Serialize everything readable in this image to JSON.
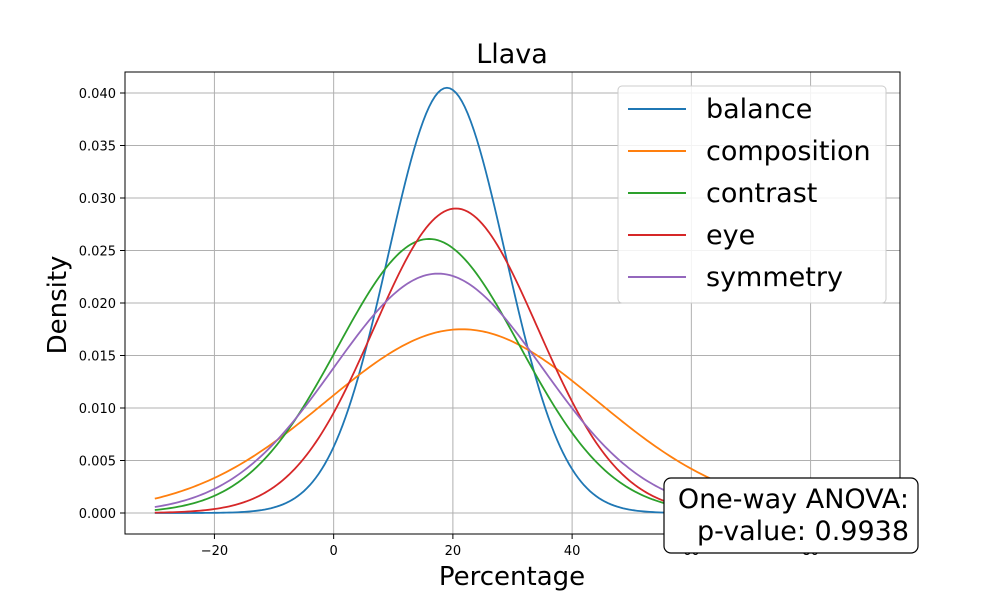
{
  "chart_data": {
    "type": "line",
    "title": "Llava",
    "xlabel": "Percentage",
    "ylabel": "Density",
    "xlim": [
      -35,
      95
    ],
    "ylim": [
      -0.002,
      0.042
    ],
    "xticks": [
      -20,
      0,
      20,
      40,
      60,
      80
    ],
    "xtick_labels": [
      "−20",
      "0",
      "20",
      "40",
      "60",
      "80"
    ],
    "yticks": [
      0.0,
      0.005,
      0.01,
      0.015,
      0.02,
      0.025,
      0.03,
      0.035,
      0.04
    ],
    "ytick_labels": [
      "0.000",
      "0.005",
      "0.010",
      "0.015",
      "0.020",
      "0.025",
      "0.030",
      "0.035",
      "0.040"
    ],
    "grid": true,
    "legend_position": "top-right",
    "x_range": [
      -30,
      90
    ],
    "series": [
      {
        "name": "balance",
        "color": "#1f77b4",
        "distribution": "normal",
        "mean": 19,
        "std": 9.85,
        "peak": 0.0405
      },
      {
        "name": "composition",
        "color": "#ff7f0e",
        "distribution": "normal",
        "mean": 21.5,
        "std": 22.8,
        "peak": 0.0175
      },
      {
        "name": "contrast",
        "color": "#2ca02c",
        "distribution": "normal",
        "mean": 16,
        "std": 15.3,
        "peak": 0.0261
      },
      {
        "name": "eye",
        "color": "#d62728",
        "distribution": "normal",
        "mean": 20.5,
        "std": 13.75,
        "peak": 0.029
      },
      {
        "name": "symmetry",
        "color": "#9467bd",
        "distribution": "normal",
        "mean": 17.5,
        "std": 17.5,
        "peak": 0.0228
      }
    ],
    "annotation": {
      "line1": "One-way ANOVA:",
      "line2": "p-value: 0.9938"
    }
  }
}
